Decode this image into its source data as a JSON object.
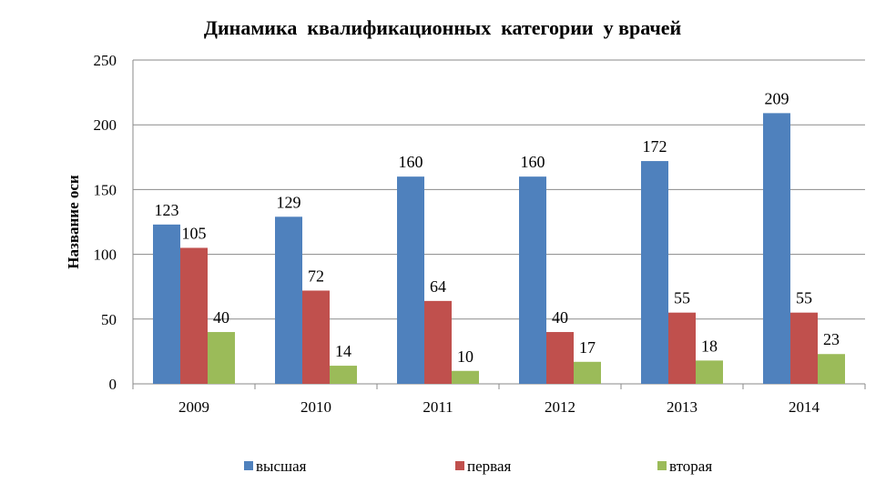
{
  "chart_data": {
    "type": "bar",
    "title": "Динамика  квалификационных  категории  у врачей",
    "xlabel": "",
    "ylabel": "Название оси",
    "categories": [
      "2009",
      "2010",
      "2011",
      "2012",
      "2013",
      "2014"
    ],
    "series": [
      {
        "name": "высшая",
        "color": "#4f81bd",
        "values": [
          123,
          129,
          160,
          160,
          172,
          209
        ]
      },
      {
        "name": "первая",
        "color": "#c0504d",
        "values": [
          105,
          72,
          64,
          40,
          55,
          55
        ]
      },
      {
        "name": "вторая",
        "color": "#9bbb59",
        "values": [
          40,
          14,
          10,
          17,
          18,
          23
        ]
      }
    ],
    "ylim": [
      0,
      250
    ],
    "yticks": [
      "0",
      "50",
      "100",
      "150",
      "200",
      "250"
    ],
    "grid": true,
    "legend_position": "bottom"
  }
}
